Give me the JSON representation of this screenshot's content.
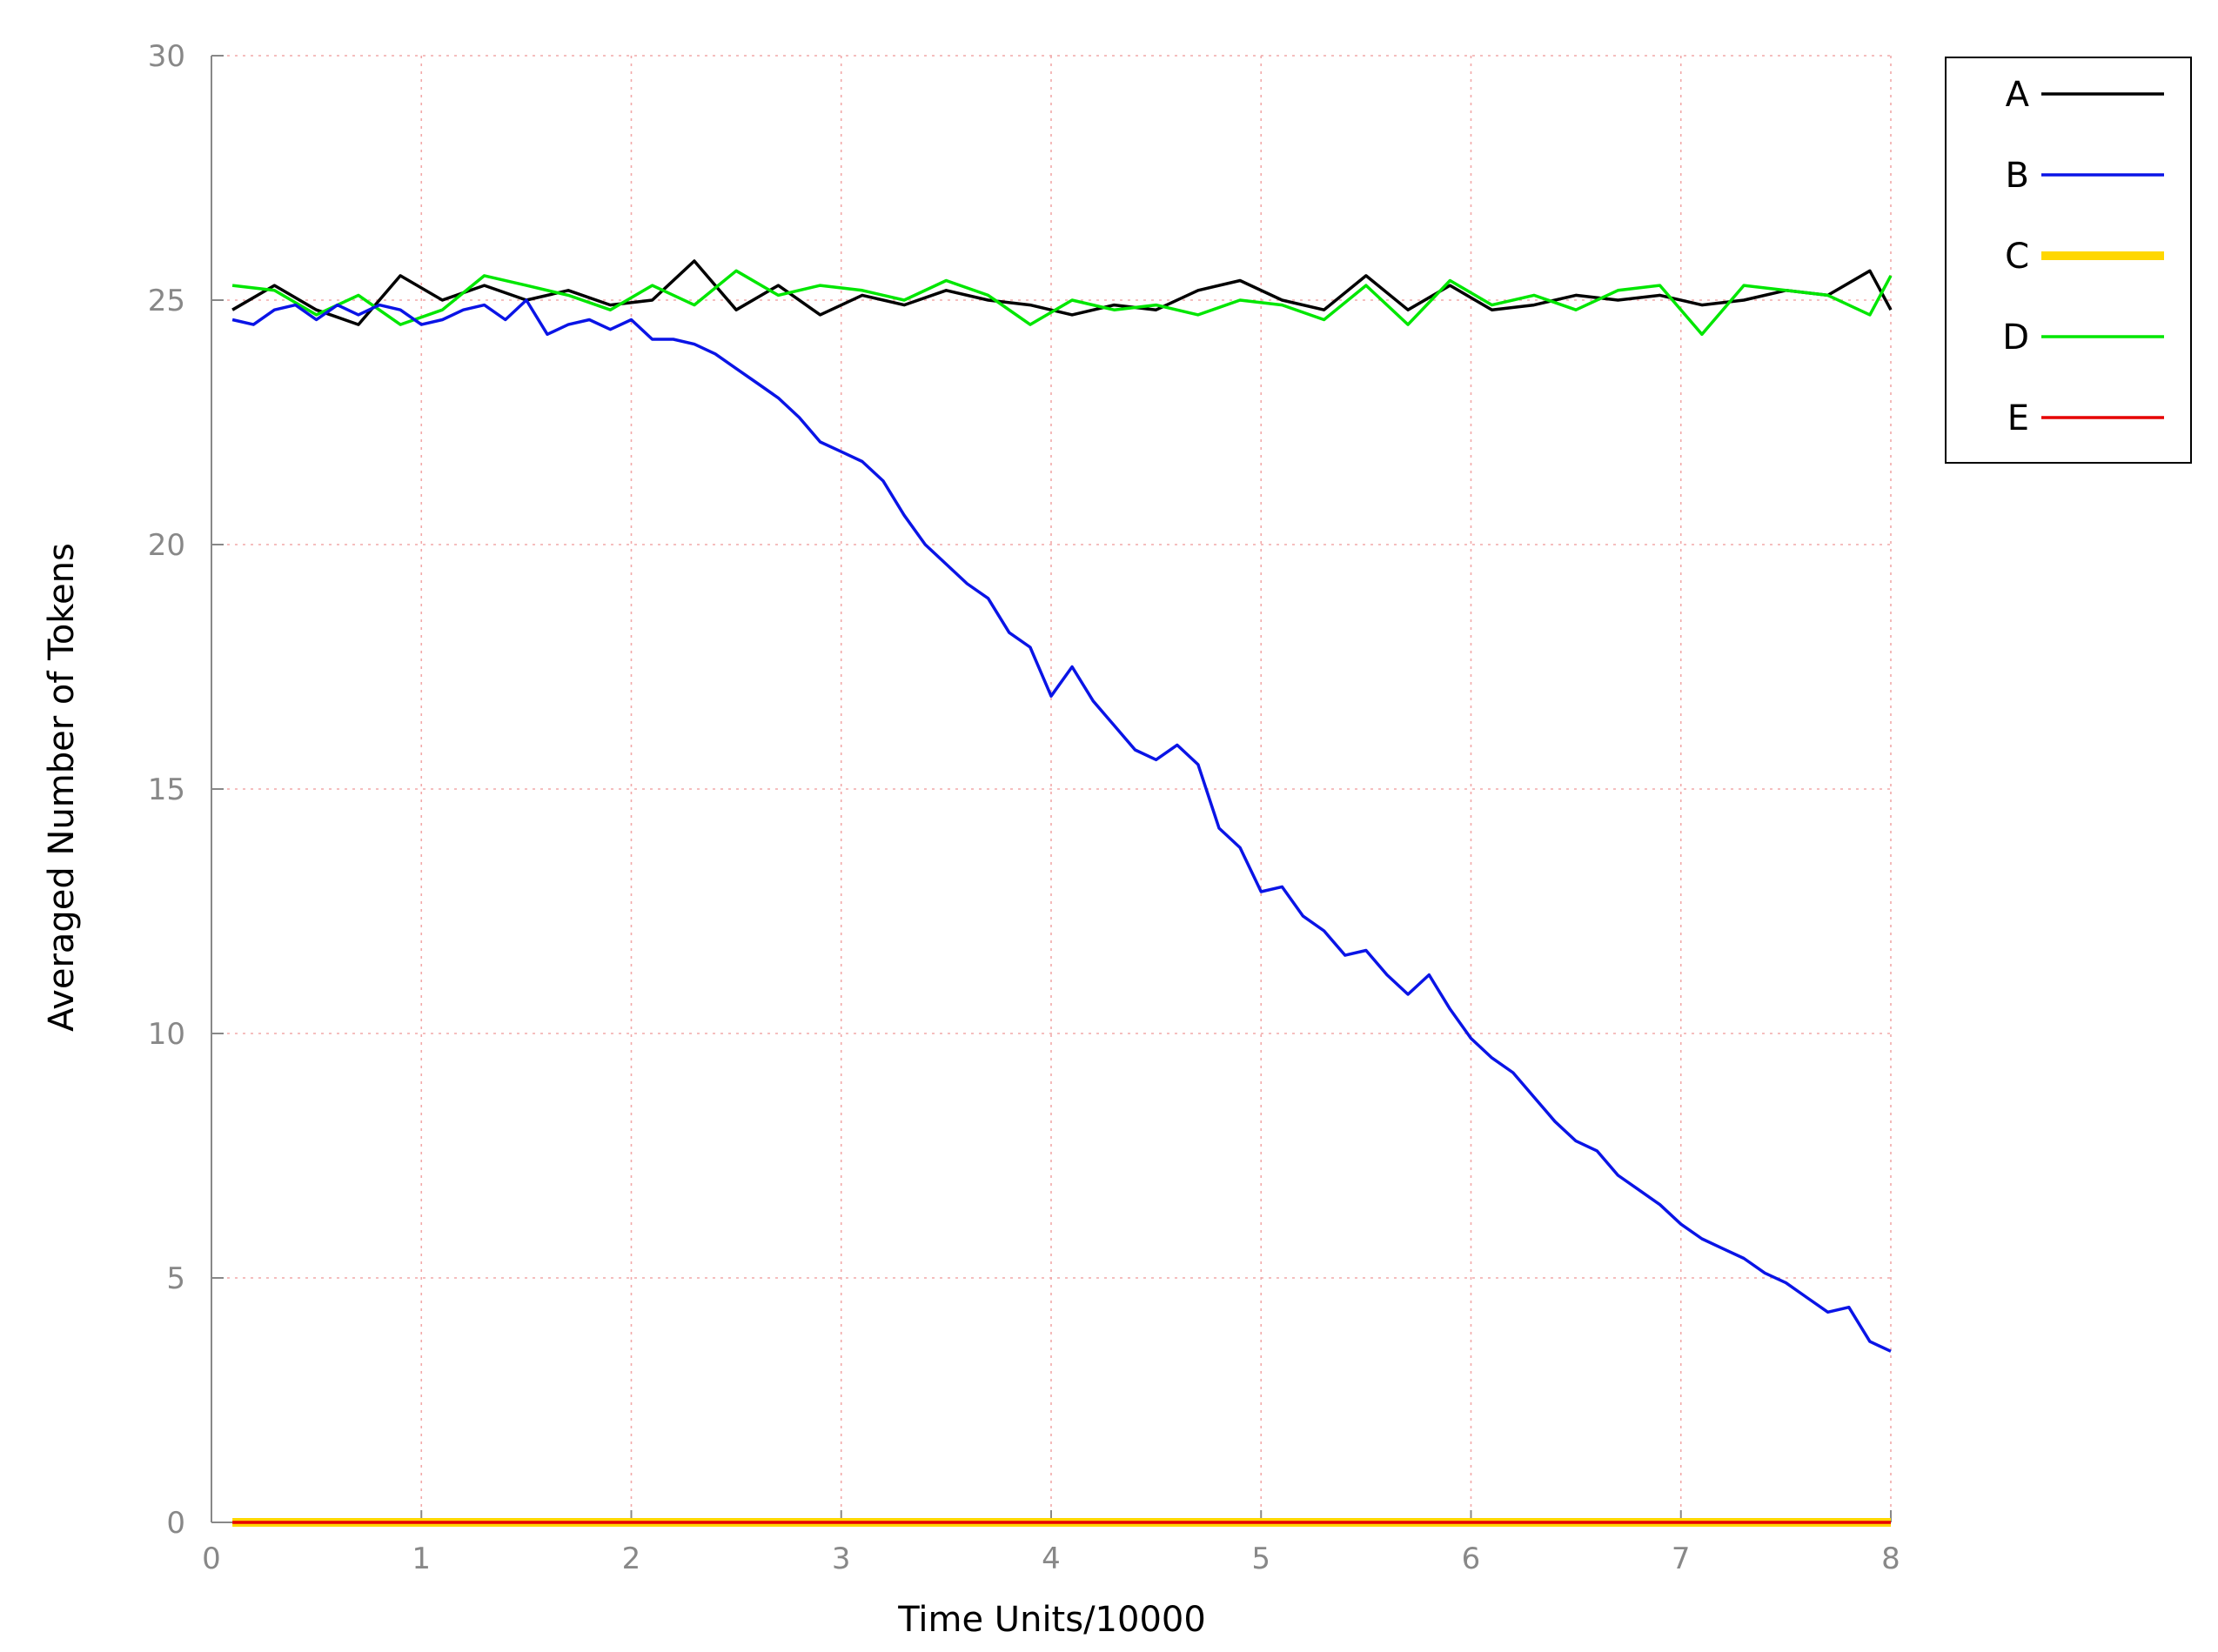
{
  "chart_data": {
    "type": "line",
    "title": "",
    "xlabel": "Time Units/10000",
    "ylabel": "Averaged Number of Tokens",
    "xlim": [
      0,
      8
    ],
    "ylim": [
      0,
      30
    ],
    "xticks": [
      "0",
      "1",
      "2",
      "3",
      "4",
      "5",
      "6",
      "7",
      "8"
    ],
    "yticks": [
      "0",
      "5",
      "10",
      "15",
      "20",
      "25",
      "30"
    ],
    "grid": true,
    "legend_position": "top-right outside",
    "series": [
      {
        "name": "A",
        "color": "#000000",
        "x": [
          0.1,
          0.3,
          0.5,
          0.7,
          0.9,
          1.1,
          1.3,
          1.5,
          1.7,
          1.9,
          2.1,
          2.3,
          2.5,
          2.7,
          2.9,
          3.1,
          3.3,
          3.5,
          3.7,
          3.9,
          4.1,
          4.3,
          4.5,
          4.7,
          4.9,
          5.1,
          5.3,
          5.5,
          5.7,
          5.9,
          6.1,
          6.3,
          6.5,
          6.7,
          6.9,
          7.1,
          7.3,
          7.5,
          7.7,
          7.9,
          8.0
        ],
        "y": [
          24.8,
          25.3,
          24.8,
          24.5,
          25.5,
          25.0,
          25.3,
          25.0,
          25.2,
          24.9,
          25.0,
          25.8,
          24.8,
          25.3,
          24.7,
          25.1,
          24.9,
          25.2,
          25.0,
          24.9,
          24.7,
          24.9,
          24.8,
          25.2,
          25.4,
          25.0,
          24.8,
          25.5,
          24.8,
          25.3,
          24.8,
          24.9,
          25.1,
          25.0,
          25.1,
          24.9,
          25.0,
          25.2,
          25.1,
          25.6,
          24.8
        ]
      },
      {
        "name": "B",
        "color": "#0a14e6",
        "x": [
          0.1,
          0.2,
          0.3,
          0.4,
          0.5,
          0.6,
          0.7,
          0.8,
          0.9,
          1.0,
          1.1,
          1.2,
          1.3,
          1.4,
          1.5,
          1.6,
          1.7,
          1.8,
          1.9,
          2.0,
          2.1,
          2.2,
          2.3,
          2.4,
          2.5,
          2.6,
          2.7,
          2.8,
          2.9,
          3.0,
          3.1,
          3.2,
          3.3,
          3.4,
          3.5,
          3.6,
          3.7,
          3.8,
          3.9,
          4.0,
          4.1,
          4.2,
          4.3,
          4.4,
          4.5,
          4.6,
          4.7,
          4.8,
          4.9,
          5.0,
          5.1,
          5.2,
          5.3,
          5.4,
          5.5,
          5.6,
          5.7,
          5.8,
          5.9,
          6.0,
          6.1,
          6.2,
          6.3,
          6.4,
          6.5,
          6.6,
          6.7,
          6.8,
          6.9,
          7.0,
          7.1,
          7.2,
          7.3,
          7.4,
          7.5,
          7.6,
          7.7,
          7.8,
          7.9,
          8.0
        ],
        "y": [
          24.6,
          24.5,
          24.8,
          24.9,
          24.6,
          24.9,
          24.7,
          24.9,
          24.8,
          24.5,
          24.6,
          24.8,
          24.9,
          24.6,
          25.0,
          24.3,
          24.5,
          24.6,
          24.4,
          24.6,
          24.2,
          24.2,
          24.1,
          23.9,
          23.6,
          23.3,
          23.0,
          22.6,
          22.1,
          21.9,
          21.7,
          21.3,
          20.6,
          20.0,
          19.6,
          19.2,
          18.9,
          18.2,
          17.9,
          16.9,
          17.5,
          16.8,
          16.3,
          15.8,
          15.6,
          15.9,
          15.5,
          14.2,
          13.8,
          12.9,
          13.0,
          12.4,
          12.1,
          11.6,
          11.7,
          11.2,
          10.8,
          11.2,
          10.5,
          9.9,
          9.5,
          9.2,
          8.7,
          8.2,
          7.8,
          7.6,
          7.1,
          6.8,
          6.5,
          6.1,
          5.8,
          5.6,
          5.4,
          5.1,
          4.9,
          4.6,
          4.3,
          4.4,
          3.7,
          3.5
        ]
      },
      {
        "name": "C",
        "color": "#ffd700",
        "x": [
          0.1,
          8.0
        ],
        "y": [
          0.0,
          0.0
        ]
      },
      {
        "name": "D",
        "color": "#00e600",
        "x": [
          0.1,
          0.3,
          0.5,
          0.7,
          0.9,
          1.1,
          1.3,
          1.5,
          1.7,
          1.9,
          2.1,
          2.3,
          2.5,
          2.7,
          2.9,
          3.1,
          3.3,
          3.5,
          3.7,
          3.9,
          4.1,
          4.3,
          4.5,
          4.7,
          4.9,
          5.1,
          5.3,
          5.5,
          5.7,
          5.9,
          6.1,
          6.3,
          6.5,
          6.7,
          6.9,
          7.1,
          7.3,
          7.5,
          7.7,
          7.9,
          8.0
        ],
        "y": [
          25.3,
          25.2,
          24.7,
          25.1,
          24.5,
          24.8,
          25.5,
          25.3,
          25.1,
          24.8,
          25.3,
          24.9,
          25.6,
          25.1,
          25.3,
          25.2,
          25.0,
          25.4,
          25.1,
          24.5,
          25.0,
          24.8,
          24.9,
          24.7,
          25.0,
          24.9,
          24.6,
          25.3,
          24.5,
          25.4,
          24.9,
          25.1,
          24.8,
          25.2,
          25.3,
          24.3,
          25.3,
          25.2,
          25.1,
          24.7,
          25.5
        ]
      },
      {
        "name": "E",
        "color": "#e60000",
        "x": [
          0.1,
          8.0
        ],
        "y": [
          0.0,
          0.0
        ]
      }
    ]
  }
}
